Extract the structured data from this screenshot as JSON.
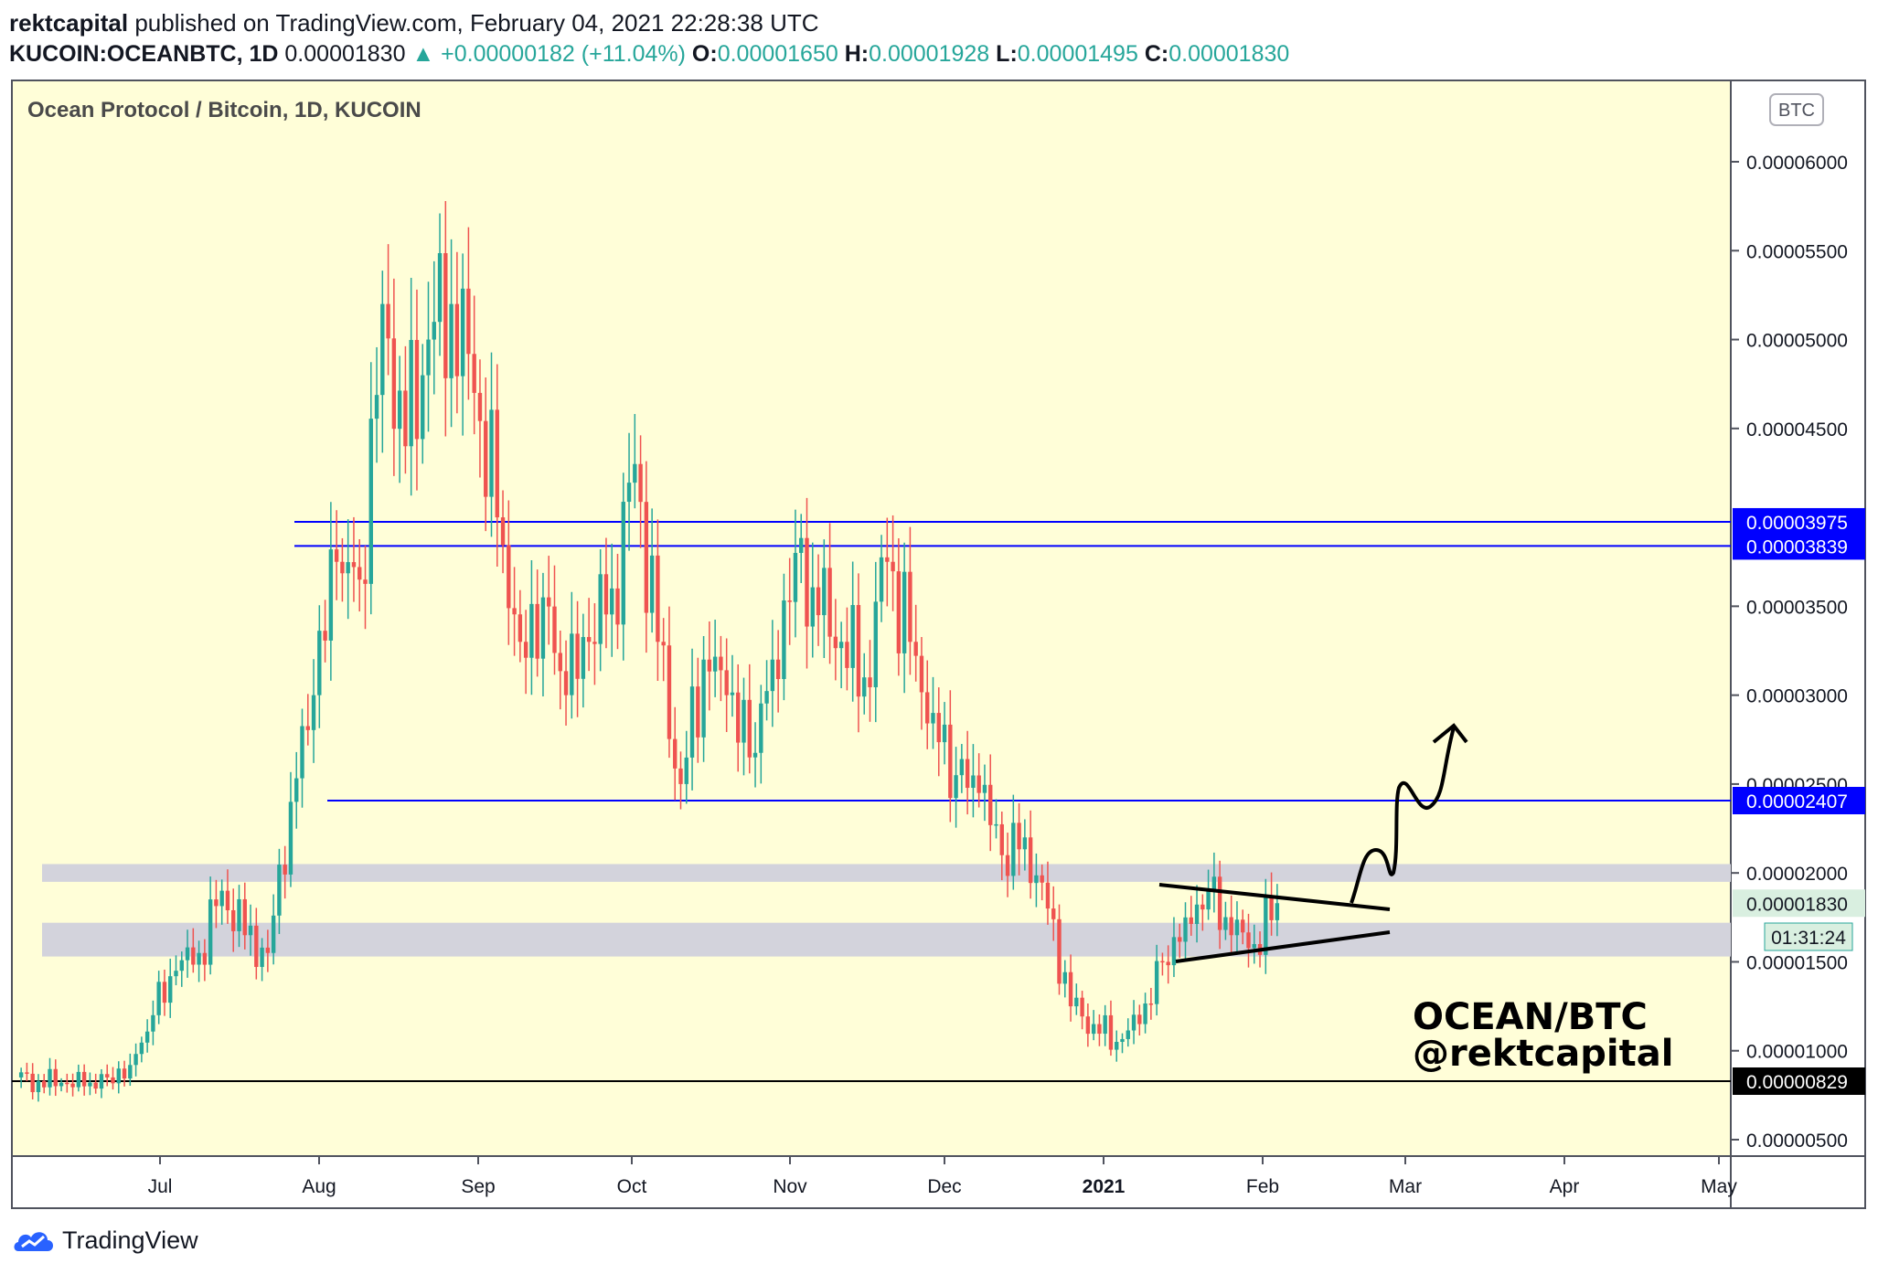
{
  "header": {
    "author": "rektcapital",
    "published_text": "published on TradingView.com, February 04, 2021 22:28:38 UTC",
    "symbol": "KUCOIN:OCEANBTC, 1D",
    "last_price": "0.00001830",
    "change": "▲ +0.00000182 (+11.04%)",
    "open_label": "O:",
    "open": "0.00001650",
    "high_label": "H:",
    "high": "0.00001928",
    "low_label": "L:",
    "low": "0.00001495",
    "close_label": "C:",
    "close": "0.00001830"
  },
  "chart": {
    "pane_title": "Ocean Protocol / Bitcoin, 1D, KUCOIN",
    "currency_badge": "BTC",
    "annotation_line1": "OCEAN/BTC",
    "annotation_line2": "@rektcapital",
    "countdown": "01:31:24",
    "colors": {
      "background": "#fffed8",
      "up": "#26a69a",
      "down": "#ef5350",
      "level_line": "#0000ff",
      "zone": "#d3d3dc",
      "price_tag": "#0000ff",
      "last_price_tag": "#26a69a"
    }
  },
  "footer": {
    "brand": "TradingView",
    "logo_icon": "tradingview-cloud-icon"
  },
  "chart_data": {
    "type": "candlestick",
    "title": "Ocean Protocol / Bitcoin, 1D, KUCOIN",
    "ylim": [
      3.5e-06,
      6.4e-06
    ],
    "y_ticks": [
      "0.00000500",
      "0.00001000",
      "0.00001500",
      "0.00002000",
      "0.00002500",
      "0.00003000",
      "0.00003500",
      "0.00004500",
      "0.00005000",
      "0.00005500",
      "0.00006000"
    ],
    "x_ticks": [
      "Jul",
      "Aug",
      "Sep",
      "Oct",
      "Nov",
      "Dec",
      "2021",
      "Feb",
      "Mar",
      "Apr",
      "May"
    ],
    "horizontal_levels": [
      {
        "price": 3.975e-05,
        "label": "0.00003975"
      },
      {
        "price": 3.839e-05,
        "label": "0.00003839"
      },
      {
        "price": 2.407e-05,
        "label": "0.00002407"
      },
      {
        "price": 8.29e-06,
        "label": "0.00000829"
      }
    ],
    "last_price": {
      "price": 1.83e-05,
      "label": "0.00001830"
    },
    "zones": [
      {
        "from": 1.95e-05,
        "to": 2.05e-05
      },
      {
        "from": 1.53e-05,
        "to": 1.72e-05
      }
    ],
    "candles_approx_close": [
      8.5e-06,
      8.3e-06,
      8.2e-06,
      8e-06,
      8.5e-06,
      9.2e-06,
      1.2e-05,
      1.45e-05,
      1.55e-05,
      1.9e-05,
      1.65e-05,
      1.55e-05,
      2.4e-05,
      3e-05,
      3.75e-05,
      3.65e-05,
      5.2e-05,
      4.4e-05,
      5e-05,
      5.2e-05,
      4.7e-05,
      4e-05,
      3.3e-05,
      3.55e-05,
      3e-05,
      3.3e-05,
      3.6e-05,
      4.3e-05,
      3.3e-05,
      2.5e-05,
      3.2e-05,
      3e-05,
      2.65e-05,
      3.2e-05,
      3.8e-05,
      3.45e-05,
      3.3e-05,
      3.1e-05,
      3.75e-05,
      3.3e-05,
      2.9e-05,
      2.55e-05,
      2.45e-05,
      2.1e-05,
      2.2e-05,
      1.8e-05,
      1.25e-05,
      1.15e-05,
      1.05e-05,
      1.15e-05,
      1.5e-05,
      1.75e-05,
      1.9e-05,
      1.65e-05,
      1.6e-05,
      1.83e-05
    ]
  }
}
